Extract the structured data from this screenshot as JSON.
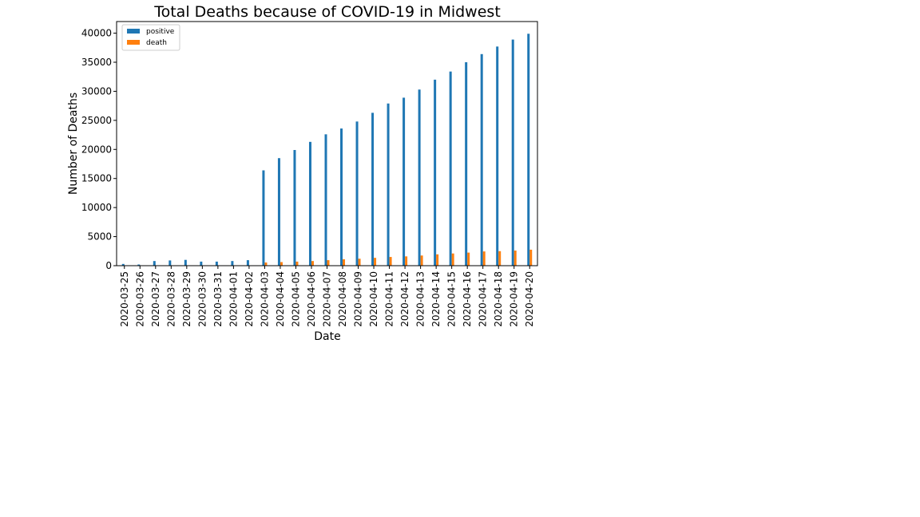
{
  "chart_data": {
    "type": "bar",
    "title": "Total Deaths because of COVID-19 in Midwest",
    "xlabel": "Date",
    "ylabel": "Number of Deaths",
    "ylim": [
      0,
      42000
    ],
    "yticks": [
      0,
      5000,
      10000,
      15000,
      20000,
      25000,
      30000,
      35000,
      40000
    ],
    "legend_position": "top-left",
    "grid": false,
    "categories": [
      "2020-03-25",
      "2020-03-26",
      "2020-03-27",
      "2020-03-28",
      "2020-03-29",
      "2020-03-30",
      "2020-03-31",
      "2020-04-01",
      "2020-04-02",
      "2020-04-03",
      "2020-04-04",
      "2020-04-05",
      "2020-04-06",
      "2020-04-07",
      "2020-04-08",
      "2020-04-09",
      "2020-04-10",
      "2020-04-11",
      "2020-04-12",
      "2020-04-13",
      "2020-04-14",
      "2020-04-15",
      "2020-04-16",
      "2020-04-17",
      "2020-04-18",
      "2020-04-19",
      "2020-04-20"
    ],
    "series": [
      {
        "name": "positive",
        "color": "#1f77b4",
        "values": [
          300,
          200,
          800,
          900,
          1000,
          700,
          700,
          800,
          950,
          16400,
          18500,
          19900,
          21300,
          22600,
          23600,
          24800,
          26300,
          27900,
          28900,
          30300,
          32000,
          33400,
          35000,
          36400,
          37700,
          38900,
          39900
        ]
      },
      {
        "name": "death",
        "color": "#ff7f0e",
        "values": [
          5,
          5,
          15,
          20,
          25,
          20,
          20,
          25,
          30,
          550,
          620,
          700,
          800,
          950,
          1100,
          1200,
          1350,
          1500,
          1600,
          1750,
          1950,
          2100,
          2250,
          2450,
          2500,
          2600,
          2750
        ]
      }
    ]
  }
}
